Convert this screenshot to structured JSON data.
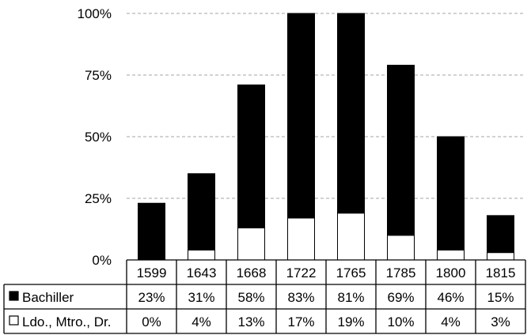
{
  "chart_data": {
    "type": "bar",
    "stacked": true,
    "categories": [
      "1599",
      "1643",
      "1668",
      "1722",
      "1765",
      "1785",
      "1800",
      "1815"
    ],
    "series": [
      {
        "name": "Bachiller",
        "values": [
          23,
          31,
          58,
          83,
          81,
          69,
          46,
          15
        ],
        "color": "#000000"
      },
      {
        "name": "Ldo., Mtro., Dr.",
        "values": [
          0,
          4,
          13,
          17,
          19,
          10,
          4,
          3
        ],
        "color": "#ffffff"
      }
    ],
    "table": {
      "rows": [
        [
          "23%",
          "31%",
          "58%",
          "83%",
          "81%",
          "69%",
          "46%",
          "15%"
        ],
        [
          "0%",
          "4%",
          "13%",
          "17%",
          "19%",
          "10%",
          "4%",
          "3%"
        ]
      ]
    },
    "y_ticks": [
      "0%",
      "25%",
      "50%",
      "75%",
      "100%"
    ],
    "ylim": [
      0,
      100
    ],
    "grid": true,
    "legend": "data-table",
    "title": "",
    "xlabel": "",
    "ylabel": ""
  }
}
